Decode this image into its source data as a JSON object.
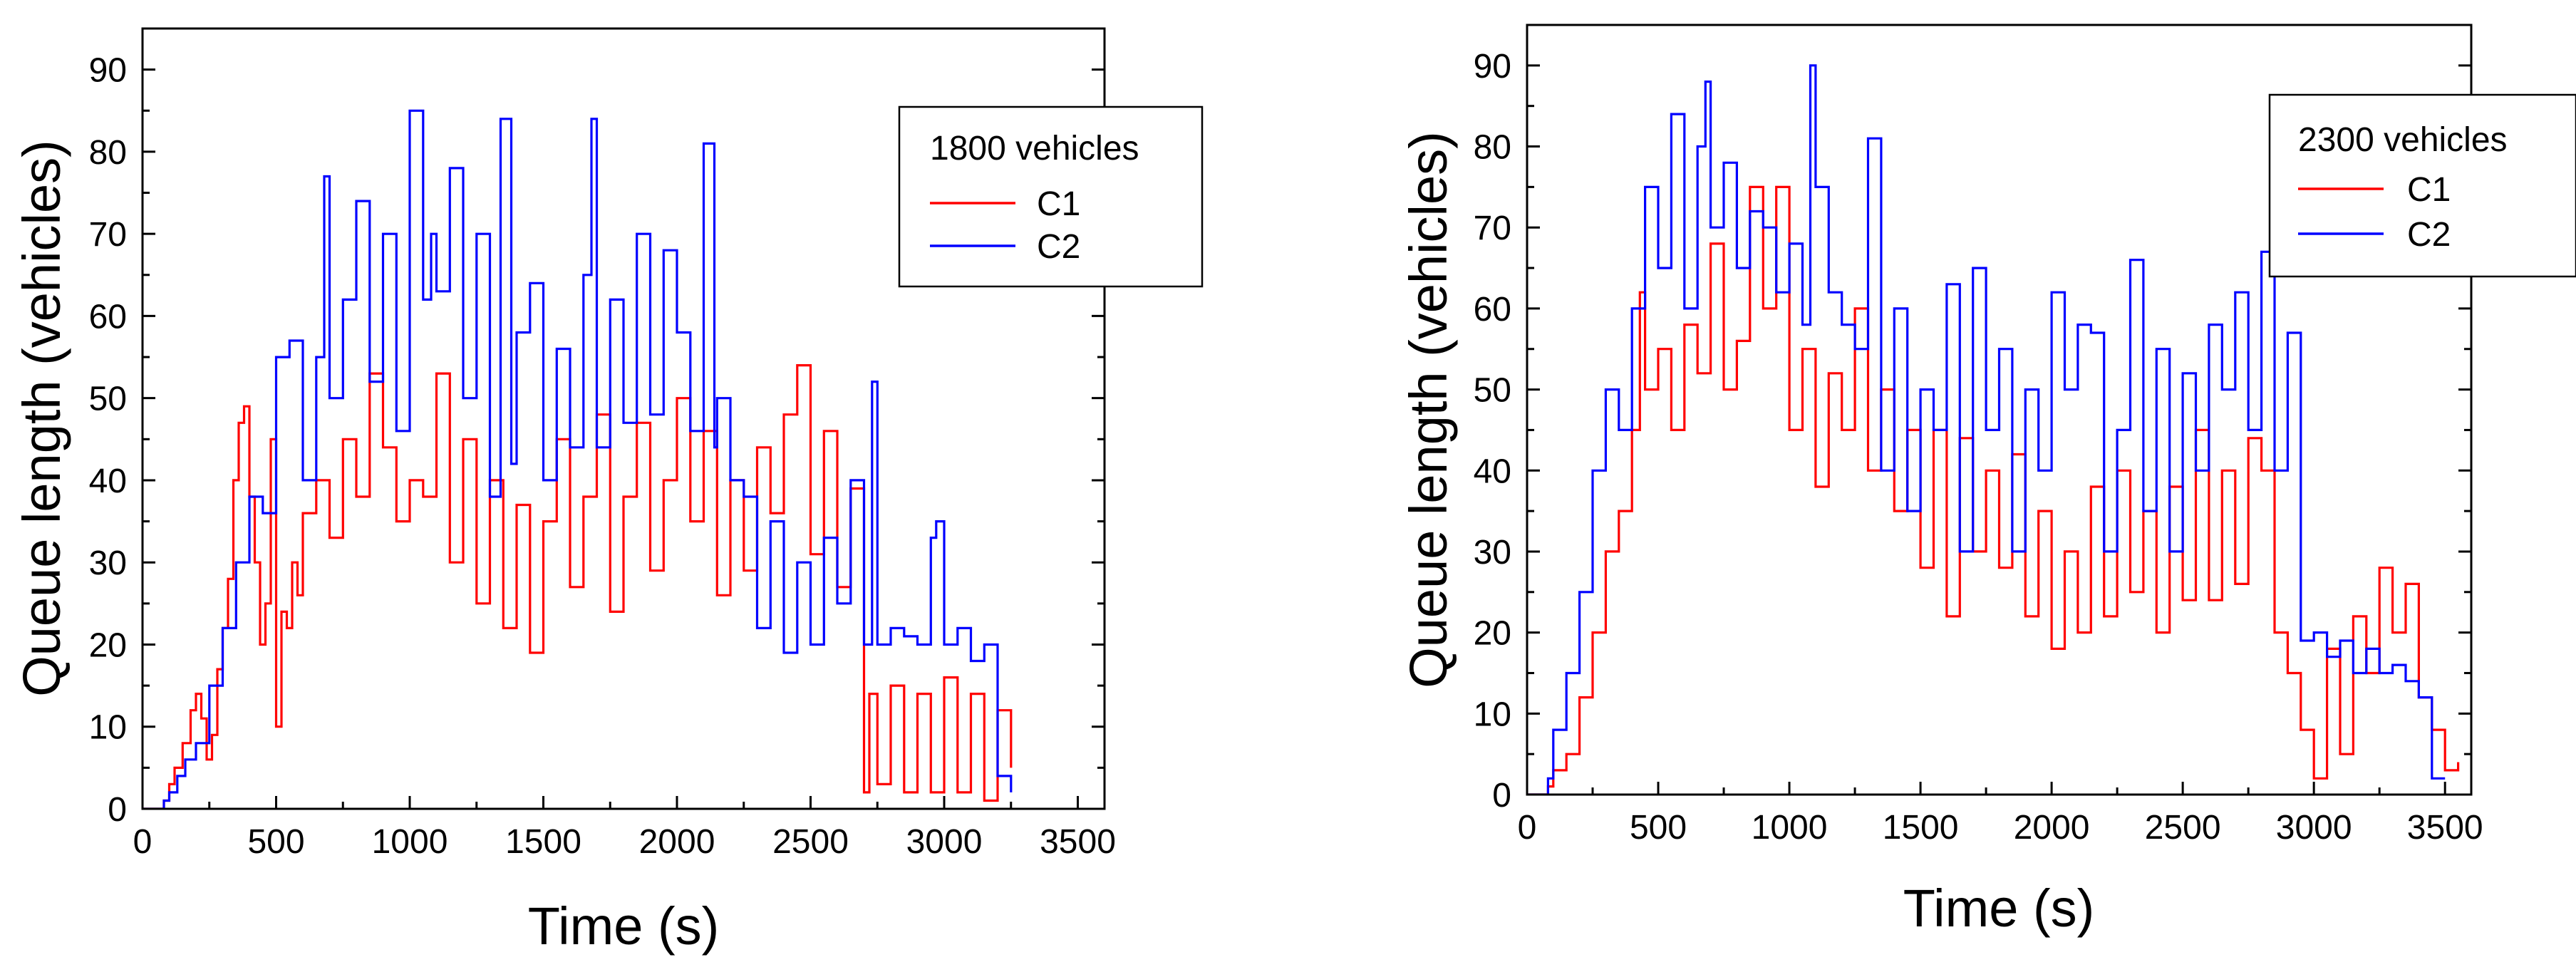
{
  "colors": {
    "c1": "#ff0000",
    "c2": "#0000ff",
    "axis": "#000000",
    "background": "#ffffff"
  },
  "chart_data": [
    {
      "type": "line",
      "title": "1800 vehicles",
      "xlabel": "Time (s)",
      "ylabel": "Queue length (vehicles)",
      "xlim": [
        0,
        3600
      ],
      "ylim": [
        0,
        95
      ],
      "xticks": [
        0,
        500,
        1000,
        1500,
        2000,
        2500,
        3000,
        3500
      ],
      "yticks": [
        0,
        10,
        20,
        30,
        40,
        50,
        60,
        70,
        80,
        90
      ],
      "xtick_labels": [
        "0",
        "500",
        "1000",
        "1500",
        "2000",
        "2500",
        "3000",
        "3500"
      ],
      "ytick_labels": [
        "0",
        "10",
        "20",
        "30",
        "40",
        "50",
        "60",
        "70",
        "80",
        "90"
      ],
      "legend_title": "1800 vehicles",
      "legend_position": "top-right",
      "grid": false,
      "series": [
        {
          "name": "C1",
          "color": "#ff0000",
          "x": [
            0,
            50,
            80,
            100,
            120,
            150,
            180,
            200,
            220,
            240,
            260,
            280,
            300,
            320,
            340,
            360,
            380,
            400,
            420,
            440,
            460,
            480,
            500,
            520,
            540,
            560,
            580,
            600,
            650,
            700,
            750,
            800,
            850,
            900,
            950,
            1000,
            1050,
            1100,
            1150,
            1200,
            1250,
            1300,
            1350,
            1400,
            1450,
            1500,
            1550,
            1600,
            1650,
            1700,
            1750,
            1800,
            1850,
            1900,
            1950,
            2000,
            2050,
            2100,
            2150,
            2200,
            2250,
            2300,
            2350,
            2400,
            2450,
            2500,
            2550,
            2600,
            2650,
            2700,
            2720,
            2750,
            2800,
            2850,
            2900,
            2950,
            3000,
            3050,
            3100,
            3150,
            3200,
            3250
          ],
          "y": [
            0,
            0,
            1,
            3,
            5,
            8,
            12,
            14,
            11,
            6,
            9,
            17,
            22,
            28,
            40,
            47,
            49,
            38,
            30,
            20,
            25,
            45,
            10,
            24,
            22,
            30,
            26,
            36,
            40,
            33,
            45,
            38,
            53,
            44,
            35,
            40,
            38,
            53,
            30,
            45,
            25,
            40,
            22,
            37,
            19,
            35,
            45,
            27,
            38,
            48,
            24,
            38,
            47,
            29,
            40,
            50,
            35,
            46,
            26,
            40,
            29,
            44,
            36,
            48,
            54,
            31,
            46,
            27,
            39,
            2,
            14,
            3,
            15,
            2,
            14,
            2,
            16,
            2,
            14,
            1,
            12,
            5
          ]
        },
        {
          "name": "C2",
          "color": "#0000ff",
          "x": [
            0,
            50,
            80,
            100,
            130,
            160,
            200,
            250,
            300,
            350,
            400,
            450,
            500,
            550,
            600,
            650,
            680,
            700,
            750,
            800,
            850,
            900,
            950,
            1000,
            1050,
            1080,
            1100,
            1150,
            1200,
            1250,
            1300,
            1340,
            1380,
            1400,
            1450,
            1500,
            1550,
            1600,
            1650,
            1680,
            1700,
            1750,
            1800,
            1850,
            1900,
            1950,
            2000,
            2050,
            2100,
            2140,
            2150,
            2200,
            2250,
            2300,
            2350,
            2400,
            2450,
            2500,
            2550,
            2600,
            2650,
            2700,
            2730,
            2750,
            2800,
            2850,
            2900,
            2950,
            2970,
            3000,
            3050,
            3100,
            3150,
            3200,
            3250
          ],
          "y": [
            0,
            0,
            1,
            2,
            4,
            6,
            8,
            15,
            22,
            30,
            38,
            36,
            55,
            57,
            40,
            55,
            77,
            50,
            62,
            74,
            52,
            70,
            46,
            85,
            62,
            70,
            63,
            78,
            50,
            70,
            38,
            84,
            42,
            58,
            64,
            40,
            56,
            44,
            65,
            84,
            44,
            62,
            47,
            70,
            48,
            68,
            58,
            46,
            81,
            44,
            50,
            40,
            38,
            22,
            35,
            19,
            30,
            20,
            33,
            25,
            40,
            20,
            52,
            20,
            22,
            21,
            20,
            33,
            35,
            20,
            22,
            18,
            20,
            4,
            2
          ]
        }
      ]
    },
    {
      "type": "line",
      "title": "2300 vehicles",
      "xlabel": "Time (s)",
      "ylabel": "Queue length (vehicles)",
      "xlim": [
        0,
        3600
      ],
      "ylim": [
        0,
        95
      ],
      "xticks": [
        0,
        500,
        1000,
        1500,
        2000,
        2500,
        3000,
        3500
      ],
      "yticks": [
        0,
        10,
        20,
        30,
        40,
        50,
        60,
        70,
        80,
        90
      ],
      "xtick_labels": [
        "0",
        "500",
        "1000",
        "1500",
        "2000",
        "2500",
        "3000",
        "3500"
      ],
      "ytick_labels": [
        "0",
        "10",
        "20",
        "30",
        "40",
        "50",
        "60",
        "70",
        "80",
        "90"
      ],
      "legend_title": "2300 vehicles",
      "legend_position": "top-right",
      "grid": false,
      "series": [
        {
          "name": "C1",
          "color": "#ff0000",
          "x": [
            0,
            50,
            80,
            100,
            150,
            200,
            250,
            300,
            350,
            400,
            430,
            450,
            500,
            550,
            600,
            650,
            700,
            750,
            800,
            850,
            900,
            950,
            1000,
            1050,
            1100,
            1150,
            1200,
            1250,
            1300,
            1350,
            1400,
            1450,
            1500,
            1550,
            1600,
            1650,
            1700,
            1750,
            1800,
            1850,
            1900,
            1950,
            2000,
            2050,
            2100,
            2150,
            2200,
            2250,
            2300,
            2350,
            2400,
            2450,
            2500,
            2550,
            2600,
            2650,
            2700,
            2750,
            2800,
            2850,
            2900,
            2950,
            3000,
            3050,
            3100,
            3150,
            3200,
            3250,
            3300,
            3350,
            3400,
            3450,
            3500,
            3550
          ],
          "y": [
            0,
            0,
            1,
            3,
            5,
            12,
            20,
            30,
            35,
            45,
            62,
            50,
            55,
            45,
            58,
            52,
            68,
            50,
            56,
            75,
            60,
            75,
            45,
            55,
            38,
            52,
            45,
            60,
            40,
            50,
            35,
            45,
            28,
            45,
            22,
            44,
            30,
            40,
            28,
            42,
            22,
            35,
            18,
            30,
            20,
            38,
            22,
            40,
            25,
            35,
            20,
            38,
            24,
            45,
            24,
            40,
            26,
            44,
            40,
            20,
            15,
            8,
            2,
            18,
            5,
            22,
            15,
            28,
            20,
            26,
            12,
            8,
            3,
            4
          ]
        },
        {
          "name": "C2",
          "color": "#0000ff",
          "x": [
            0,
            50,
            80,
            100,
            150,
            200,
            250,
            300,
            350,
            400,
            450,
            500,
            550,
            600,
            650,
            680,
            700,
            750,
            800,
            850,
            900,
            950,
            1000,
            1050,
            1080,
            1100,
            1150,
            1200,
            1250,
            1300,
            1350,
            1400,
            1450,
            1500,
            1550,
            1600,
            1650,
            1700,
            1750,
            1800,
            1850,
            1900,
            1950,
            2000,
            2050,
            2100,
            2150,
            2200,
            2250,
            2300,
            2350,
            2400,
            2450,
            2500,
            2550,
            2600,
            2650,
            2700,
            2750,
            2800,
            2850,
            2900,
            2950,
            3000,
            3050,
            3100,
            3150,
            3200,
            3250,
            3300,
            3350,
            3400,
            3450,
            3500
          ],
          "y": [
            0,
            0,
            2,
            8,
            15,
            25,
            40,
            50,
            45,
            60,
            75,
            65,
            84,
            60,
            80,
            88,
            70,
            78,
            65,
            72,
            70,
            62,
            68,
            58,
            90,
            75,
            62,
            58,
            55,
            81,
            40,
            60,
            35,
            50,
            45,
            63,
            30,
            65,
            45,
            55,
            30,
            50,
            40,
            62,
            50,
            58,
            57,
            30,
            45,
            66,
            35,
            55,
            30,
            52,
            40,
            58,
            50,
            62,
            45,
            67,
            40,
            57,
            19,
            20,
            17,
            19,
            15,
            18,
            15,
            16,
            14,
            12,
            2,
            2
          ]
        }
      ]
    }
  ]
}
